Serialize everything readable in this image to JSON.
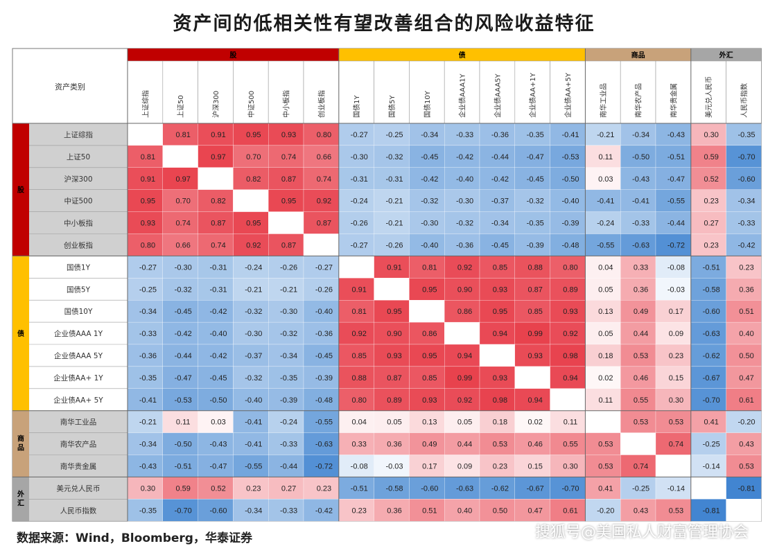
{
  "title": "资产间的低相关性有望改善组合的风险收益特征",
  "source": "数据来源：Wind，Bloomberg，华泰证券",
  "watermark": "搜狐号@美国私人财富管理协会",
  "colors": {
    "stock": "#c00000",
    "bond": "#ffc000",
    "commodity": "#c8a27a",
    "fx": "#a6a6a6",
    "label_bg": "#d0d0d0",
    "positive": "#e8404c",
    "negative": "#1f6fc8"
  },
  "chart_data": {
    "type": "heatmap",
    "corner_label": "资产类别",
    "groups": [
      {
        "name": "股",
        "count": 6,
        "color": "#c00000"
      },
      {
        "name": "债",
        "count": 7,
        "color": "#ffc000"
      },
      {
        "name": "商品",
        "count": 3,
        "color": "#c8a27a"
      },
      {
        "name": "外汇",
        "count": 2,
        "color": "#a6a6a6"
      }
    ],
    "assets": [
      "上证综指",
      "上证50",
      "沪深300",
      "中证500",
      "中小板指",
      "创业板指",
      "国债1Y",
      "国债5Y",
      "国债10Y",
      "企业债AAA 1Y",
      "企业债AAA 5Y",
      "企业债AA+ 1Y",
      "企业债AA+ 5Y",
      "南华工业品",
      "南华农产品",
      "南华贵金属",
      "美元兑人民币",
      "人民币指数"
    ],
    "col_labels": [
      "上证综指",
      "上证50",
      "沪深300",
      "中证500",
      "中小板指",
      "创业板指",
      "国债1Y",
      "国债5Y",
      "国债10Y",
      "企业债AAA1Y",
      "企业债AAA5Y",
      "企业债AA+1Y",
      "企业债AA+5Y",
      "南华工业品",
      "南华农产品",
      "南华贵金属",
      "美元兑人民币",
      "人民币指数"
    ],
    "matrix": [
      [
        null,
        0.81,
        0.91,
        0.95,
        0.93,
        0.8,
        -0.27,
        -0.25,
        -0.34,
        -0.33,
        -0.36,
        -0.35,
        -0.41,
        -0.21,
        -0.34,
        -0.43,
        0.3,
        -0.35
      ],
      [
        0.81,
        null,
        0.97,
        0.7,
        0.74,
        0.66,
        -0.3,
        -0.32,
        -0.45,
        -0.42,
        -0.44,
        -0.47,
        -0.53,
        0.11,
        -0.5,
        -0.51,
        0.59,
        -0.7
      ],
      [
        0.91,
        0.97,
        null,
        0.82,
        0.87,
        0.74,
        -0.31,
        -0.31,
        -0.42,
        -0.4,
        -0.42,
        -0.45,
        -0.5,
        0.03,
        -0.43,
        -0.47,
        0.52,
        -0.6
      ],
      [
        0.95,
        0.7,
        0.82,
        null,
        0.95,
        0.92,
        -0.24,
        -0.21,
        -0.32,
        -0.3,
        -0.37,
        -0.32,
        -0.4,
        -0.41,
        -0.41,
        -0.55,
        0.23,
        -0.34
      ],
      [
        0.93,
        0.74,
        0.87,
        0.95,
        null,
        0.87,
        -0.26,
        -0.21,
        -0.3,
        -0.32,
        -0.34,
        -0.35,
        -0.39,
        -0.24,
        -0.33,
        -0.44,
        0.27,
        -0.33
      ],
      [
        0.8,
        0.66,
        0.74,
        0.92,
        0.87,
        null,
        -0.27,
        -0.26,
        -0.4,
        -0.36,
        -0.45,
        -0.39,
        -0.48,
        -0.55,
        -0.63,
        -0.72,
        0.23,
        -0.42
      ],
      [
        -0.27,
        -0.3,
        -0.31,
        -0.24,
        -0.26,
        -0.27,
        null,
        0.91,
        0.81,
        0.92,
        0.85,
        0.88,
        0.8,
        0.04,
        0.33,
        -0.08,
        -0.51,
        0.23
      ],
      [
        -0.25,
        -0.32,
        -0.31,
        -0.21,
        -0.21,
        -0.26,
        0.91,
        null,
        0.95,
        0.9,
        0.93,
        0.87,
        0.89,
        0.05,
        0.36,
        -0.03,
        -0.58,
        0.36
      ],
      [
        -0.34,
        -0.45,
        -0.42,
        -0.32,
        -0.3,
        -0.4,
        0.81,
        0.95,
        null,
        0.86,
        0.95,
        0.85,
        0.93,
        0.13,
        0.49,
        0.17,
        -0.6,
        0.51
      ],
      [
        -0.33,
        -0.42,
        -0.4,
        -0.3,
        -0.32,
        -0.36,
        0.92,
        0.9,
        0.86,
        null,
        0.94,
        0.99,
        0.92,
        0.05,
        0.44,
        0.09,
        -0.63,
        0.4
      ],
      [
        -0.36,
        -0.44,
        -0.42,
        -0.37,
        -0.34,
        -0.45,
        0.85,
        0.93,
        0.95,
        0.94,
        null,
        0.93,
        0.98,
        0.18,
        0.53,
        0.23,
        -0.62,
        0.5
      ],
      [
        -0.35,
        -0.47,
        -0.45,
        -0.32,
        -0.35,
        -0.39,
        0.88,
        0.87,
        0.85,
        0.99,
        0.93,
        null,
        0.94,
        0.02,
        0.46,
        0.15,
        -0.67,
        0.47
      ],
      [
        -0.41,
        -0.53,
        -0.5,
        -0.4,
        -0.39,
        -0.48,
        0.8,
        0.89,
        0.93,
        0.92,
        0.98,
        0.94,
        null,
        0.11,
        0.55,
        0.3,
        -0.7,
        0.61
      ],
      [
        -0.21,
        0.11,
        0.03,
        -0.41,
        -0.24,
        -0.55,
        0.04,
        0.05,
        0.13,
        0.05,
        0.18,
        0.02,
        0.11,
        null,
        0.53,
        0.53,
        0.41,
        -0.2
      ],
      [
        -0.34,
        -0.5,
        -0.43,
        -0.41,
        -0.33,
        -0.63,
        0.33,
        0.36,
        0.49,
        0.44,
        0.53,
        0.46,
        0.55,
        0.53,
        null,
        0.74,
        -0.25,
        0.43
      ],
      [
        -0.43,
        -0.51,
        -0.47,
        -0.55,
        -0.44,
        -0.72,
        -0.08,
        -0.03,
        0.17,
        0.09,
        0.23,
        0.15,
        0.3,
        0.53,
        0.74,
        null,
        -0.14,
        0.53
      ],
      [
        0.3,
        0.59,
        0.52,
        0.23,
        0.27,
        0.23,
        -0.51,
        -0.58,
        -0.6,
        -0.63,
        -0.62,
        -0.67,
        -0.7,
        0.41,
        -0.25,
        -0.14,
        null,
        -0.81
      ],
      [
        -0.35,
        -0.7,
        -0.6,
        -0.34,
        -0.33,
        -0.42,
        0.23,
        0.36,
        0.51,
        0.4,
        0.5,
        0.47,
        0.61,
        -0.2,
        0.43,
        0.53,
        -0.81,
        null
      ]
    ],
    "value_range": [
      -1,
      1
    ]
  }
}
